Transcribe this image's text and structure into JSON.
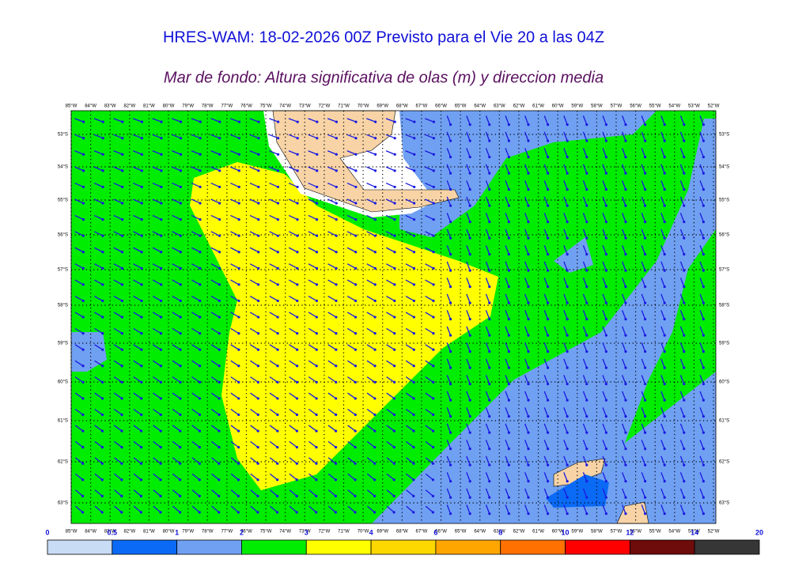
{
  "title": "HRES-WAM: 18-02-2026 00Z Previsto para el Vie 20 a las 04Z",
  "subtitle": "Mar de fondo: Altura significativa de olas (m) y direccion media",
  "lon_labels": [
    "85°W",
    "84°W",
    "83°W",
    "82°W",
    "81°W",
    "80°W",
    "79°W",
    "78°W",
    "77°W",
    "76°W",
    "75°W",
    "74°W",
    "73°W",
    "72°W",
    "71°W",
    "70°W",
    "69°W",
    "68°W",
    "67°W",
    "66°W",
    "65°W",
    "64°W",
    "63°W",
    "62°W",
    "61°W",
    "60°W",
    "59°W",
    "58°W",
    "57°W",
    "56°W",
    "55°W",
    "54°W",
    "53°W",
    "52°W"
  ],
  "lat_labels": [
    "53°S",
    "54°S",
    "55°S",
    "56°S",
    "57°S",
    "58°S",
    "59°S",
    "60°S",
    "61°S",
    "62°S",
    "63°S"
  ],
  "colorbar": {
    "bounds": [
      0,
      0.5,
      1,
      2,
      3,
      4,
      6,
      8,
      10,
      12,
      14,
      20
    ],
    "colors": [
      "#c8dcf6",
      "#0a6af5",
      "#70a0f2",
      "#00ec00",
      "#ffff00",
      "#fcd700",
      "#ffa600",
      "#ff7100",
      "#ff0000",
      "#6e0b0b",
      "#363636"
    ]
  }
}
